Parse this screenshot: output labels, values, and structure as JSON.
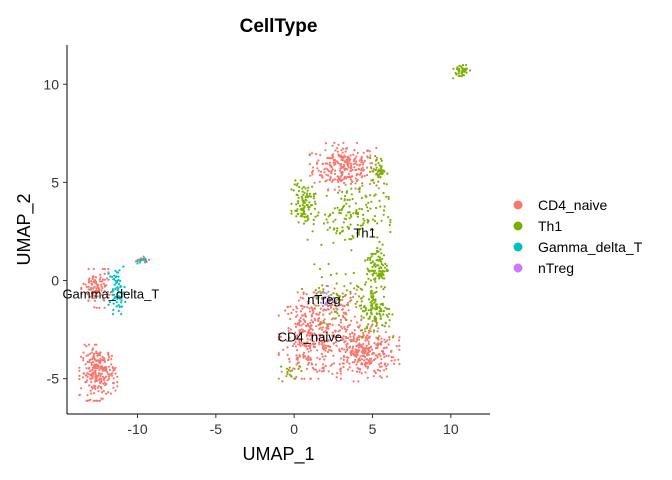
{
  "chart_data": {
    "type": "scatter",
    "title": "CellType",
    "xlabel": "UMAP_1",
    "ylabel": "UMAP_2",
    "xlim": [
      -14.5,
      12.5
    ],
    "ylim": [
      -6.8,
      12.0
    ],
    "x_ticks": [
      -10,
      -5,
      0,
      5,
      10
    ],
    "y_ticks": [
      -5,
      0,
      5,
      10
    ],
    "grid": false,
    "legend_position": "right",
    "series": [
      {
        "name": "CD4_naive",
        "color": "#F8766D"
      },
      {
        "name": "Th1",
        "color": "#7CAE00"
      },
      {
        "name": "Gamma_delta_T",
        "color": "#00BFC4"
      },
      {
        "name": "nTreg",
        "color": "#C77CFF"
      }
    ],
    "clusters": [
      {
        "series": "CD4_naive",
        "cx": 3.2,
        "cy": 5.8,
        "sx": 1.0,
        "sy": 0.55,
        "n": 260
      },
      {
        "series": "CD4_naive",
        "cx": 1.0,
        "cy": -2.8,
        "sx": 0.9,
        "sy": 1.0,
        "n": 320
      },
      {
        "series": "CD4_naive",
        "cx": 4.3,
        "cy": -3.6,
        "sx": 1.1,
        "sy": 0.7,
        "n": 340
      },
      {
        "series": "CD4_naive",
        "cx": 3.0,
        "cy": -1.5,
        "sx": 0.6,
        "sy": 0.5,
        "n": 60
      },
      {
        "series": "CD4_naive",
        "cx": -12.5,
        "cy": -4.7,
        "sx": 0.55,
        "sy": 0.65,
        "n": 240
      },
      {
        "series": "CD4_naive",
        "cx": -12.6,
        "cy": -0.4,
        "sx": 0.45,
        "sy": 0.45,
        "n": 110
      },
      {
        "series": "CD4_naive",
        "cx": -9.7,
        "cy": 1.0,
        "sx": 0.3,
        "sy": 0.1,
        "n": 18
      },
      {
        "series": "Th1",
        "cx": 0.6,
        "cy": 4.0,
        "sx": 0.35,
        "sy": 0.5,
        "n": 90
      },
      {
        "series": "Th1",
        "cx": 3.5,
        "cy": 3.3,
        "sx": 1.2,
        "sy": 0.8,
        "n": 150
      },
      {
        "series": "Th1",
        "cx": 5.4,
        "cy": 5.6,
        "sx": 0.25,
        "sy": 0.35,
        "n": 45
      },
      {
        "series": "Th1",
        "cx": 5.3,
        "cy": 0.7,
        "sx": 0.35,
        "sy": 0.6,
        "n": 100
      },
      {
        "series": "Th1",
        "cx": 5.2,
        "cy": -1.6,
        "sx": 0.5,
        "sy": 0.6,
        "n": 110
      },
      {
        "series": "Th1",
        "cx": 2.7,
        "cy": -0.7,
        "sx": 1.0,
        "sy": 0.7,
        "n": 70
      },
      {
        "series": "Th1",
        "cx": 10.6,
        "cy": 10.7,
        "sx": 0.3,
        "sy": 0.18,
        "n": 40
      },
      {
        "series": "Th1",
        "cx": -0.2,
        "cy": -4.6,
        "sx": 0.3,
        "sy": 0.3,
        "n": 15
      },
      {
        "series": "Gamma_delta_T",
        "cx": -11.3,
        "cy": -0.5,
        "sx": 0.25,
        "sy": 0.55,
        "n": 70
      },
      {
        "series": "Gamma_delta_T",
        "cx": -9.6,
        "cy": 1.0,
        "sx": 0.2,
        "sy": 0.08,
        "n": 10
      },
      {
        "series": "nTreg",
        "cx": 2.0,
        "cy": -0.9,
        "sx": 0.3,
        "sy": 0.3,
        "n": 22
      }
    ],
    "cluster_labels": [
      {
        "text": "Th1",
        "x": 4.5,
        "y": 2.4
      },
      {
        "text": "nTreg",
        "x": 1.9,
        "y": -1.0
      },
      {
        "text": "CD4_naive",
        "x": 1.0,
        "y": -2.9
      },
      {
        "text": "Gamma_delta_T",
        "x": -11.7,
        "y": -0.7
      }
    ]
  }
}
